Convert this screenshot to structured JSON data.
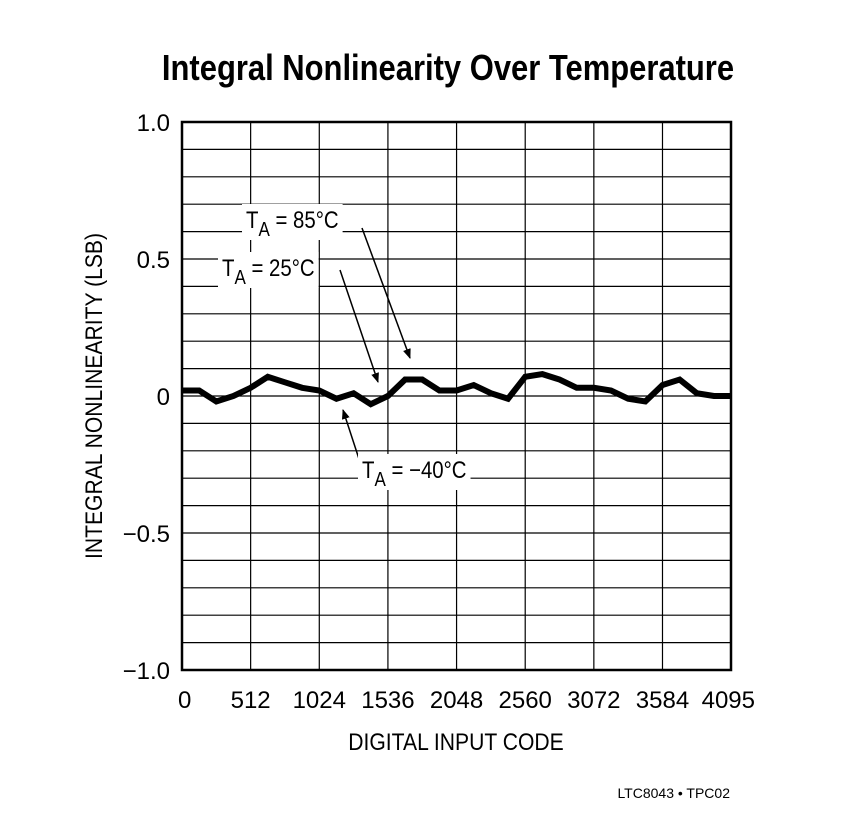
{
  "chart_data": {
    "type": "line",
    "title": "Integral Nonlinearity Over Temperature",
    "x_label": "DIGITAL INPUT CODE",
    "y_label": "INTEGRAL NONLINEARITY (LSB)",
    "footnote": "LTC8043 • TPC02",
    "x": [
      0,
      128,
      256,
      384,
      512,
      640,
      768,
      896,
      1024,
      1152,
      1280,
      1408,
      1536,
      1664,
      1792,
      1920,
      2048,
      2176,
      2304,
      2432,
      2560,
      2688,
      2816,
      2944,
      3072,
      3200,
      3328,
      3456,
      3584,
      3712,
      3840,
      3968,
      4095
    ],
    "series": [
      {
        "color": "#000000",
        "values": [
          0.02,
          0.02,
          -0.02,
          0,
          0.03,
          0.07,
          0.05,
          0.03,
          0.02,
          -0.01,
          0.01,
          -0.03,
          0,
          0.06,
          0.06,
          0.02,
          0.02,
          0.04,
          0.01,
          -0.01,
          0.07,
          0.08,
          0.06,
          0.03,
          0.03,
          0.02,
          -0.01,
          -0.02,
          0.04,
          0.06,
          0.01,
          0,
          0
        ]
      }
    ],
    "xlim": [
      0,
      4095
    ],
    "xticks": [
      0,
      512,
      1024,
      1536,
      2048,
      2560,
      3072,
      3584,
      4095
    ],
    "ylim": [
      -1,
      1
    ],
    "yticks": [
      {
        "value": 1,
        "label": "1.0"
      },
      0.5,
      0,
      {
        "value": -0.5,
        "label": "−0.5"
      },
      {
        "value": -1,
        "label": "−1.0"
      }
    ],
    "yminor": [
      -0.9,
      -0.8,
      -0.7,
      -0.6,
      -0.4,
      -0.3,
      -0.2,
      -0.1,
      0.1,
      0.2,
      0.3,
      0.4,
      0.6,
      0.7,
      0.8,
      0.9
    ],
    "grid": true,
    "annotations": [
      {
        "main": "T",
        "sub": "A",
        "rest": " = 85°C"
      },
      {
        "main": "T",
        "sub": "A",
        "rest": " = 25°C"
      },
      {
        "main": "T",
        "sub": "A",
        "rest": " = −40°C"
      }
    ]
  }
}
